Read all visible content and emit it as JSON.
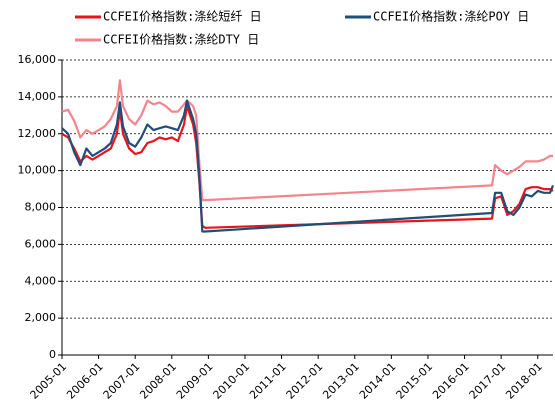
{
  "chart_data": {
    "type": "line",
    "x": [
      "2005-01",
      "2005-03",
      "2005-05",
      "2005-07",
      "2005-09",
      "2005-11",
      "2006-01",
      "2006-03",
      "2006-05",
      "2006-07",
      "2006-08",
      "2006-09",
      "2006-11",
      "2007-01",
      "2007-03",
      "2007-05",
      "2007-07",
      "2007-09",
      "2007-11",
      "2008-01",
      "2008-03",
      "2008-05",
      "2008-06",
      "2008-08",
      "2008-09",
      "2008-10",
      "2008-11",
      "2008-12",
      "2016-10",
      "2016-11",
      "2017-01",
      "2017-03",
      "2017-05",
      "2017-07",
      "2017-09",
      "2017-11",
      "2018-01",
      "2018-03",
      "2018-05",
      "2018-06"
    ],
    "series": [
      {
        "name": "CCFEI价格指数:涤纶短纤 日",
        "color": "#e8141c",
        "values": [
          12000,
          11800,
          11200,
          10500,
          10800,
          10600,
          10800,
          11000,
          11200,
          12000,
          13300,
          12000,
          11200,
          10900,
          11000,
          11500,
          11600,
          11800,
          11700,
          11800,
          11600,
          12500,
          13500,
          12500,
          11500,
          9500,
          7000,
          6900,
          7400,
          8500,
          8600,
          7600,
          7800,
          8200,
          9000,
          9100,
          9100,
          9000,
          9000,
          8900
        ]
      },
      {
        "name": "CCFEI价格指数:涤纶POY 日",
        "color": "#1f4e79",
        "values": [
          12300,
          12000,
          11000,
          10300,
          11200,
          10800,
          11000,
          11200,
          11500,
          12500,
          13700,
          12400,
          11500,
          11300,
          11800,
          12500,
          12200,
          12300,
          12400,
          12300,
          12200,
          13000,
          13800,
          12800,
          12000,
          9800,
          6700,
          6700,
          7700,
          8800,
          8800,
          7800,
          7600,
          8000,
          8700,
          8600,
          8900,
          8800,
          8800,
          9200
        ]
      },
      {
        "name": "CCFEI价格指数:涤纶DTY 日",
        "color": "#f4858c",
        "values": [
          13200,
          13300,
          12700,
          11800,
          12200,
          12000,
          12200,
          12400,
          12800,
          13500,
          14900,
          13500,
          12800,
          12500,
          13000,
          13800,
          13600,
          13700,
          13500,
          13200,
          13200,
          13600,
          13800,
          13500,
          13000,
          10500,
          8400,
          8400,
          9200,
          10300,
          10000,
          9800,
          10000,
          10200,
          10500,
          10500,
          10500,
          10600,
          10800,
          10800
        ]
      }
    ],
    "xlim": [
      "2005-01",
      "2018-06"
    ],
    "xticks": [
      "2005-01",
      "2006-01",
      "2007-01",
      "2008-01",
      "2009-01",
      "2010-01",
      "2011-01",
      "2012-01",
      "2013-01",
      "2014-01",
      "2015-01",
      "2016-01",
      "2017-01",
      "2018-01"
    ],
    "ylim": [
      0,
      16000
    ],
    "yticks": [
      0,
      {
        "value": 2000,
        "label": "2,000"
      },
      {
        "value": 4000,
        "label": "4,000"
      },
      {
        "value": 6000,
        "label": "6,000"
      },
      {
        "value": 8000,
        "label": "8,000"
      },
      {
        "value": 10000,
        "label": "10,000"
      },
      {
        "value": 12000,
        "label": "12,000"
      },
      {
        "value": 14000,
        "label": "14,000"
      },
      {
        "value": 16000,
        "label": "16,000"
      }
    ],
    "grid": true
  }
}
